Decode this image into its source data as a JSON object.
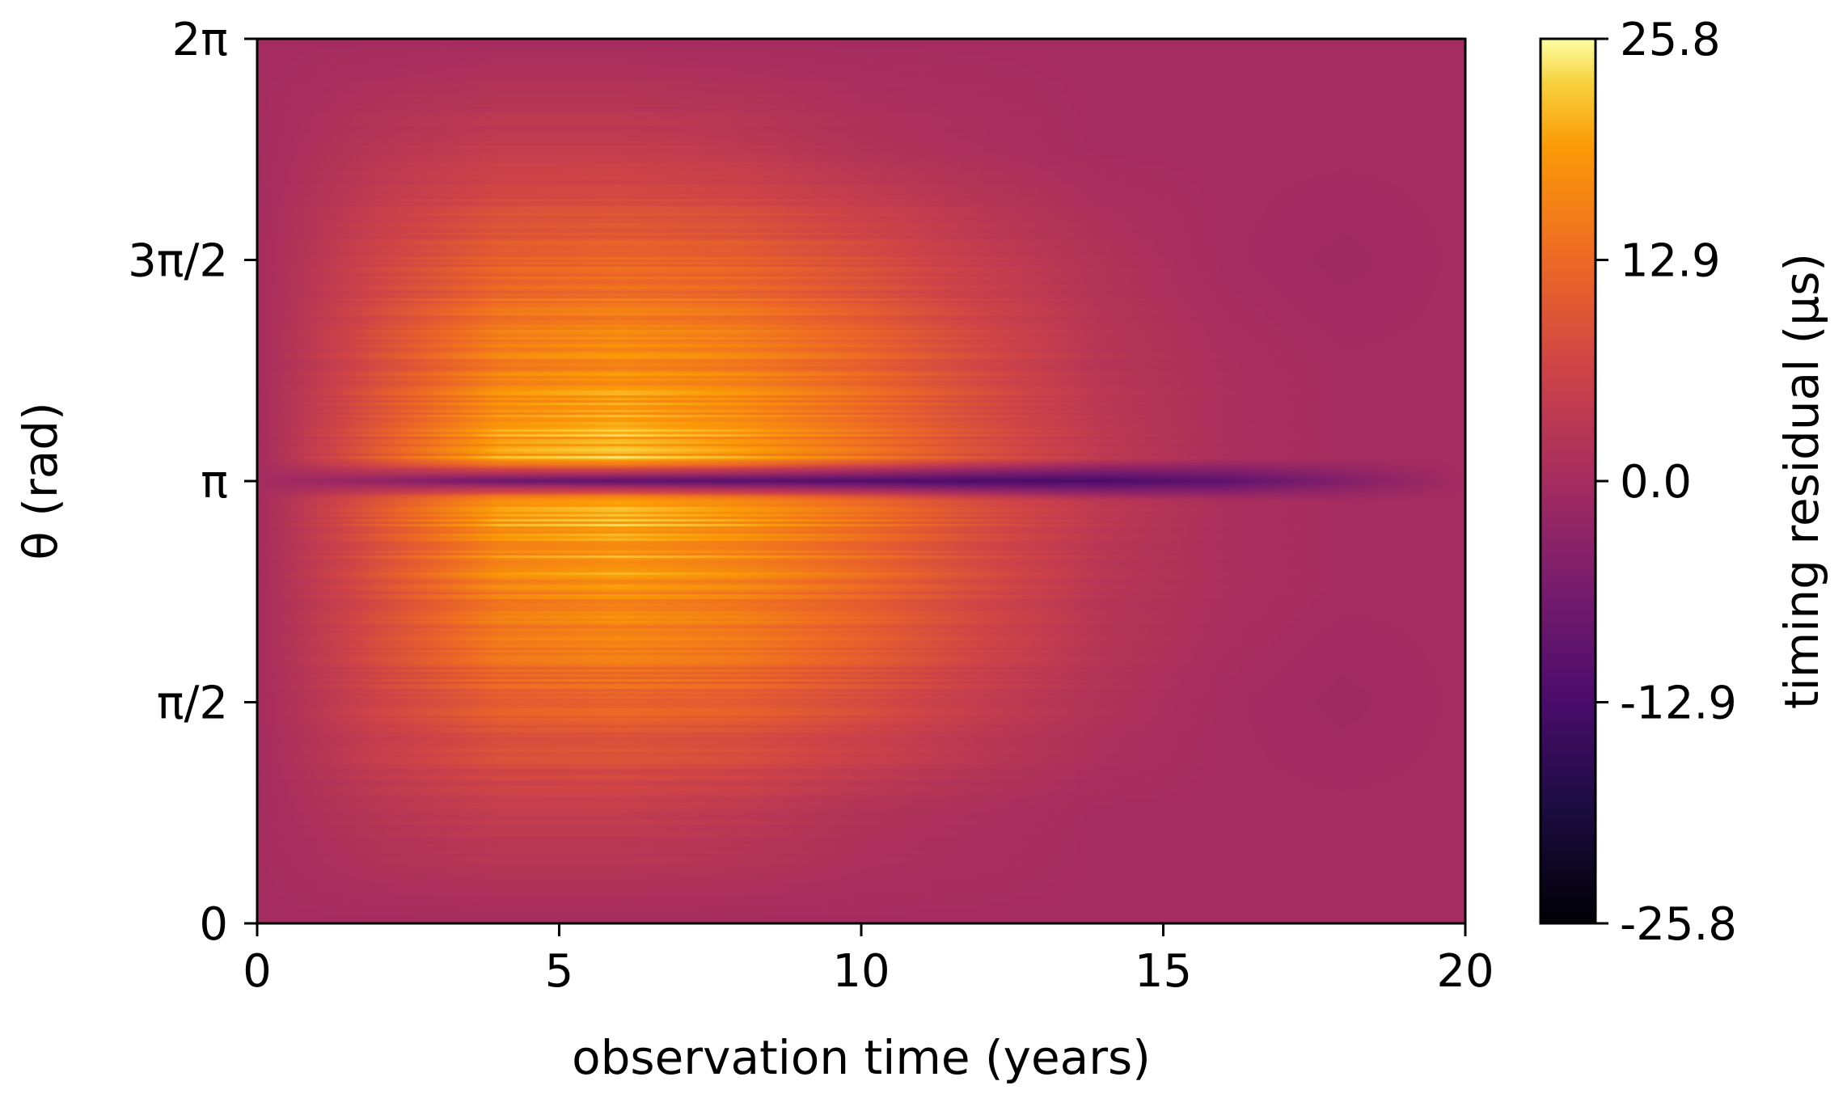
{
  "chart_data": {
    "type": "heatmap",
    "title": "",
    "xlabel": "observation time (years)",
    "ylabel": "θ (rad)",
    "xlim": [
      0,
      20
    ],
    "ylim": [
      0,
      6.283185
    ],
    "x_ticks": [
      {
        "value": 0,
        "label": "0"
      },
      {
        "value": 5,
        "label": "5"
      },
      {
        "value": 10,
        "label": "10"
      },
      {
        "value": 15,
        "label": "15"
      },
      {
        "value": 20,
        "label": "20"
      }
    ],
    "y_ticks": [
      {
        "value": 0,
        "label": "0"
      },
      {
        "value": 1.570796,
        "label": "π/2"
      },
      {
        "value": 3.141593,
        "label": "π"
      },
      {
        "value": 4.712389,
        "label": "3π/2"
      },
      {
        "value": 6.283185,
        "label": "2π"
      }
    ],
    "colormap": "inferno",
    "colorbar": {
      "label": "timing residual (μs)",
      "min": -25.8,
      "max": 25.8,
      "ticks": [
        {
          "value": 25.8,
          "label": "25.8"
        },
        {
          "value": 12.9,
          "label": "12.9"
        },
        {
          "value": 0.0,
          "label": "0.0"
        },
        {
          "value": -12.9,
          "label": "-12.9"
        },
        {
          "value": -25.8,
          "label": "-25.8"
        }
      ]
    },
    "grid": false,
    "approximate_field": {
      "x_years": [
        0,
        2,
        4,
        6,
        8,
        10,
        12,
        14,
        16,
        18,
        20
      ],
      "theta_rad": [
        0,
        0.785,
        1.571,
        2.356,
        3.0,
        3.142,
        3.3,
        3.927,
        4.712,
        5.498,
        6.283
      ],
      "residual_us": [
        [
          0,
          0,
          0,
          0,
          0,
          0,
          0,
          0,
          0,
          0,
          0
        ],
        [
          0,
          3,
          5,
          5,
          4,
          2,
          1,
          0,
          0,
          0,
          0
        ],
        [
          0,
          7,
          12,
          13,
          12,
          9,
          5,
          2,
          0,
          -1,
          0
        ],
        [
          0,
          9,
          17,
          19,
          17,
          13,
          8,
          3,
          1,
          0,
          0
        ],
        [
          0,
          11,
          21,
          23,
          20,
          15,
          9,
          4,
          1,
          0,
          0
        ],
        [
          0,
          -3,
          -8,
          -10,
          -11,
          -12,
          -13,
          -13,
          -10,
          -5,
          0
        ],
        [
          0,
          11,
          21,
          23,
          20,
          15,
          9,
          4,
          1,
          0,
          0
        ],
        [
          0,
          9,
          17,
          19,
          17,
          13,
          8,
          3,
          1,
          0,
          0
        ],
        [
          0,
          7,
          12,
          13,
          12,
          9,
          5,
          2,
          0,
          -1,
          0
        ],
        [
          0,
          3,
          5,
          5,
          4,
          2,
          1,
          0,
          0,
          0,
          0
        ],
        [
          0,
          0,
          0,
          0,
          0,
          0,
          0,
          0,
          0,
          0,
          0
        ]
      ]
    }
  }
}
